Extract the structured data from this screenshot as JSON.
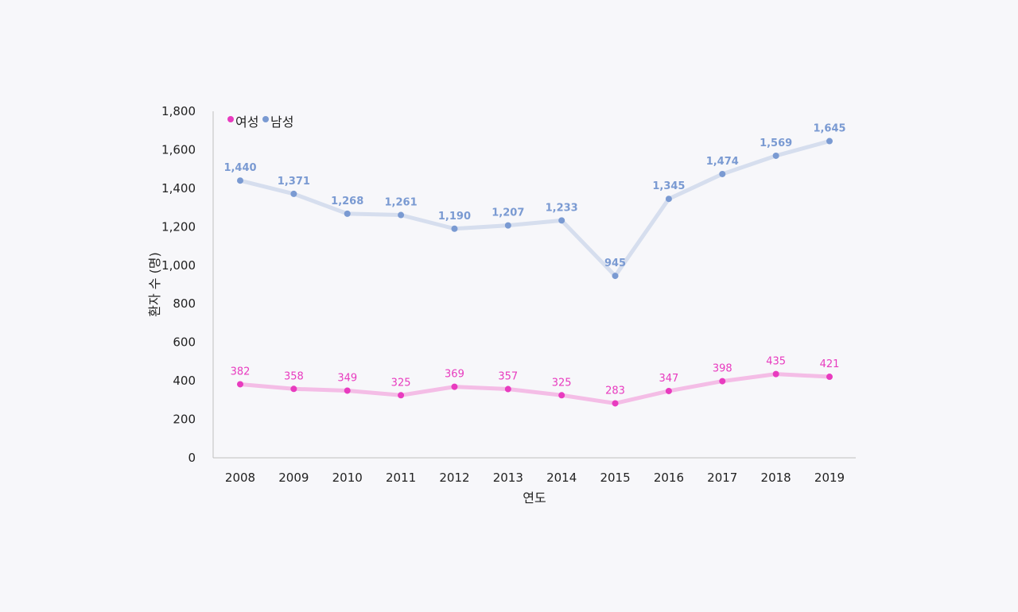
{
  "chart_data": {
    "type": "line",
    "xlabel": "연도",
    "ylabel": "환자 수 (명)",
    "categories": [
      "2008",
      "2009",
      "2010",
      "2011",
      "2012",
      "2013",
      "2014",
      "2015",
      "2016",
      "2017",
      "2018",
      "2019"
    ],
    "ylim": [
      0,
      1800
    ],
    "yticks": [
      "0",
      "200",
      "400",
      "600",
      "800",
      "1,000",
      "1,200",
      "1,400",
      "1,600",
      "1,800"
    ],
    "legend_position": "top-left",
    "grid": false,
    "series": [
      {
        "name": "여성",
        "color": "#e83bbf",
        "line_color": "#f4bde6",
        "values": [
          382,
          358,
          349,
          325,
          369,
          357,
          325,
          283,
          347,
          398,
          435,
          421
        ],
        "labels": [
          "382",
          "358",
          "349",
          "325",
          "369",
          "357",
          "325",
          "283",
          "347",
          "398",
          "435",
          "421"
        ]
      },
      {
        "name": "남성",
        "color": "#7a9ad2",
        "line_color": "#d6deee",
        "values": [
          1440,
          1371,
          1268,
          1261,
          1190,
          1207,
          1233,
          945,
          1345,
          1474,
          1569,
          1645
        ],
        "labels": [
          "1,440",
          "1,371",
          "1,268",
          "1,261",
          "1,190",
          "1,207",
          "1,233",
          "945",
          "1,345",
          "1,474",
          "1,569",
          "1,645"
        ]
      }
    ]
  }
}
